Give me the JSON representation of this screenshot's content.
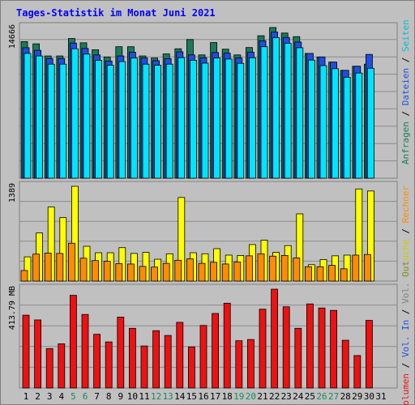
{
  "chart_data": {
    "title": "Tages-Statistik im Monat Juni 2021",
    "type": "bar",
    "categories": [
      "1",
      "2",
      "3",
      "4",
      "5",
      "6",
      "7",
      "8",
      "9",
      "10",
      "11",
      "12",
      "13",
      "14",
      "15",
      "16",
      "17",
      "18",
      "19",
      "20",
      "21",
      "22",
      "23",
      "24",
      "25",
      "26",
      "27",
      "28",
      "29",
      "30",
      "31"
    ],
    "weekend_days": [
      "5",
      "6",
      "12",
      "13",
      "19",
      "20",
      "26",
      "27"
    ],
    "colors": {
      "background": "#c0c0c0",
      "title": "#0000ff",
      "weekday_label": "#000000",
      "weekend_label": "#1a8a5a",
      "anfragen": "#1a7a5a",
      "dateien": "#1e4fe0",
      "seiten": "#00e5ff",
      "besuche": "#ffff00",
      "rechner": "#ff8c00",
      "volumen": "#ee1111"
    },
    "panels": [
      {
        "max_label": "14666",
        "ylim": [
          0,
          14666
        ],
        "axis_labels": [
          {
            "text": "Anfragen",
            "color": "#1a7a5a"
          },
          {
            "text": "Dateien",
            "color": "#1e4fe0"
          },
          {
            "text": "Seiten",
            "color": "#00bcd4"
          }
        ],
        "series": [
          {
            "name": "Anfragen",
            "values": [
              13300,
              13080,
              11900,
              11900,
              13600,
              13180,
              12500,
              11800,
              12800,
              12800,
              11900,
              11700,
              12100,
              12600,
              13500,
              12000,
              13200,
              12560,
              12000,
              12720,
              13870,
              14666,
              14130,
              13780,
              12150,
              11800,
              11300,
              10500,
              10900,
              11100,
              null
            ]
          },
          {
            "name": "Dateien",
            "values": [
              12700,
              12450,
              11650,
              11650,
              13150,
              12630,
              12000,
              11400,
              11900,
              12270,
              11700,
              11440,
              11640,
              12300,
              12000,
              11730,
              12230,
              12170,
              11700,
              12270,
              13380,
              14220,
              13700,
              13250,
              12150,
              11800,
              11300,
              10500,
              10900,
              12050,
              null
            ]
          },
          {
            "name": "Seiten",
            "values": [
              12150,
              11900,
              11100,
              11100,
              12600,
              12080,
              11480,
              11000,
              11350,
              11700,
              11100,
              11000,
              11100,
              11730,
              11480,
              11200,
              11700,
              11600,
              11180,
              11720,
              12800,
              13680,
              13130,
              12700,
              11500,
              10960,
              10660,
              9820,
              10240,
              10700,
              null
            ]
          }
        ]
      },
      {
        "max_label": "1389",
        "ylim": [
          0,
          1389
        ],
        "axis_labels": [
          {
            "text": "Besuche",
            "color": "#cccc00"
          },
          {
            "text": "Rechner",
            "color": "#ff8c00"
          }
        ],
        "series": [
          {
            "name": "Besuche",
            "values": [
              355,
              705,
              1085,
              930,
              1389,
              510,
              415,
              415,
              490,
              405,
              420,
              320,
              400,
              1225,
              415,
              400,
              475,
              380,
              375,
              535,
              600,
              420,
              520,
              985,
              240,
              315,
              370,
              380,
              1350,
              1320,
              null
            ]
          },
          {
            "name": "Rechner",
            "values": [
              155,
              395,
              410,
              405,
              555,
              335,
              300,
              290,
              255,
              250,
              215,
              205,
              260,
              305,
              325,
              260,
              275,
              250,
              280,
              370,
              400,
              365,
              375,
              340,
              210,
              210,
              230,
              180,
              380,
              390,
              null
            ]
          }
        ]
      },
      {
        "max_label": "413.79 MB",
        "ylim": [
          0,
          413.79
        ],
        "axis_labels": [
          {
            "text": "Volumen",
            "color": "#ee1111"
          },
          {
            "text": "Vol. In",
            "color": "#1e4fe0"
          },
          {
            "text": "Vol. Out",
            "color": "#808080"
          }
        ],
        "series": [
          {
            "name": "Volumen",
            "values": [
              305,
              285,
              165,
              185,
              388,
              308,
              225,
              193,
              297,
              250,
              176,
              240,
              220,
              275,
              172,
              262,
              312,
              355,
              198,
              203,
              330,
              413.79,
              340,
              250,
              352,
              335,
              325,
              200,
              136,
              283,
              null
            ]
          }
        ]
      }
    ]
  }
}
